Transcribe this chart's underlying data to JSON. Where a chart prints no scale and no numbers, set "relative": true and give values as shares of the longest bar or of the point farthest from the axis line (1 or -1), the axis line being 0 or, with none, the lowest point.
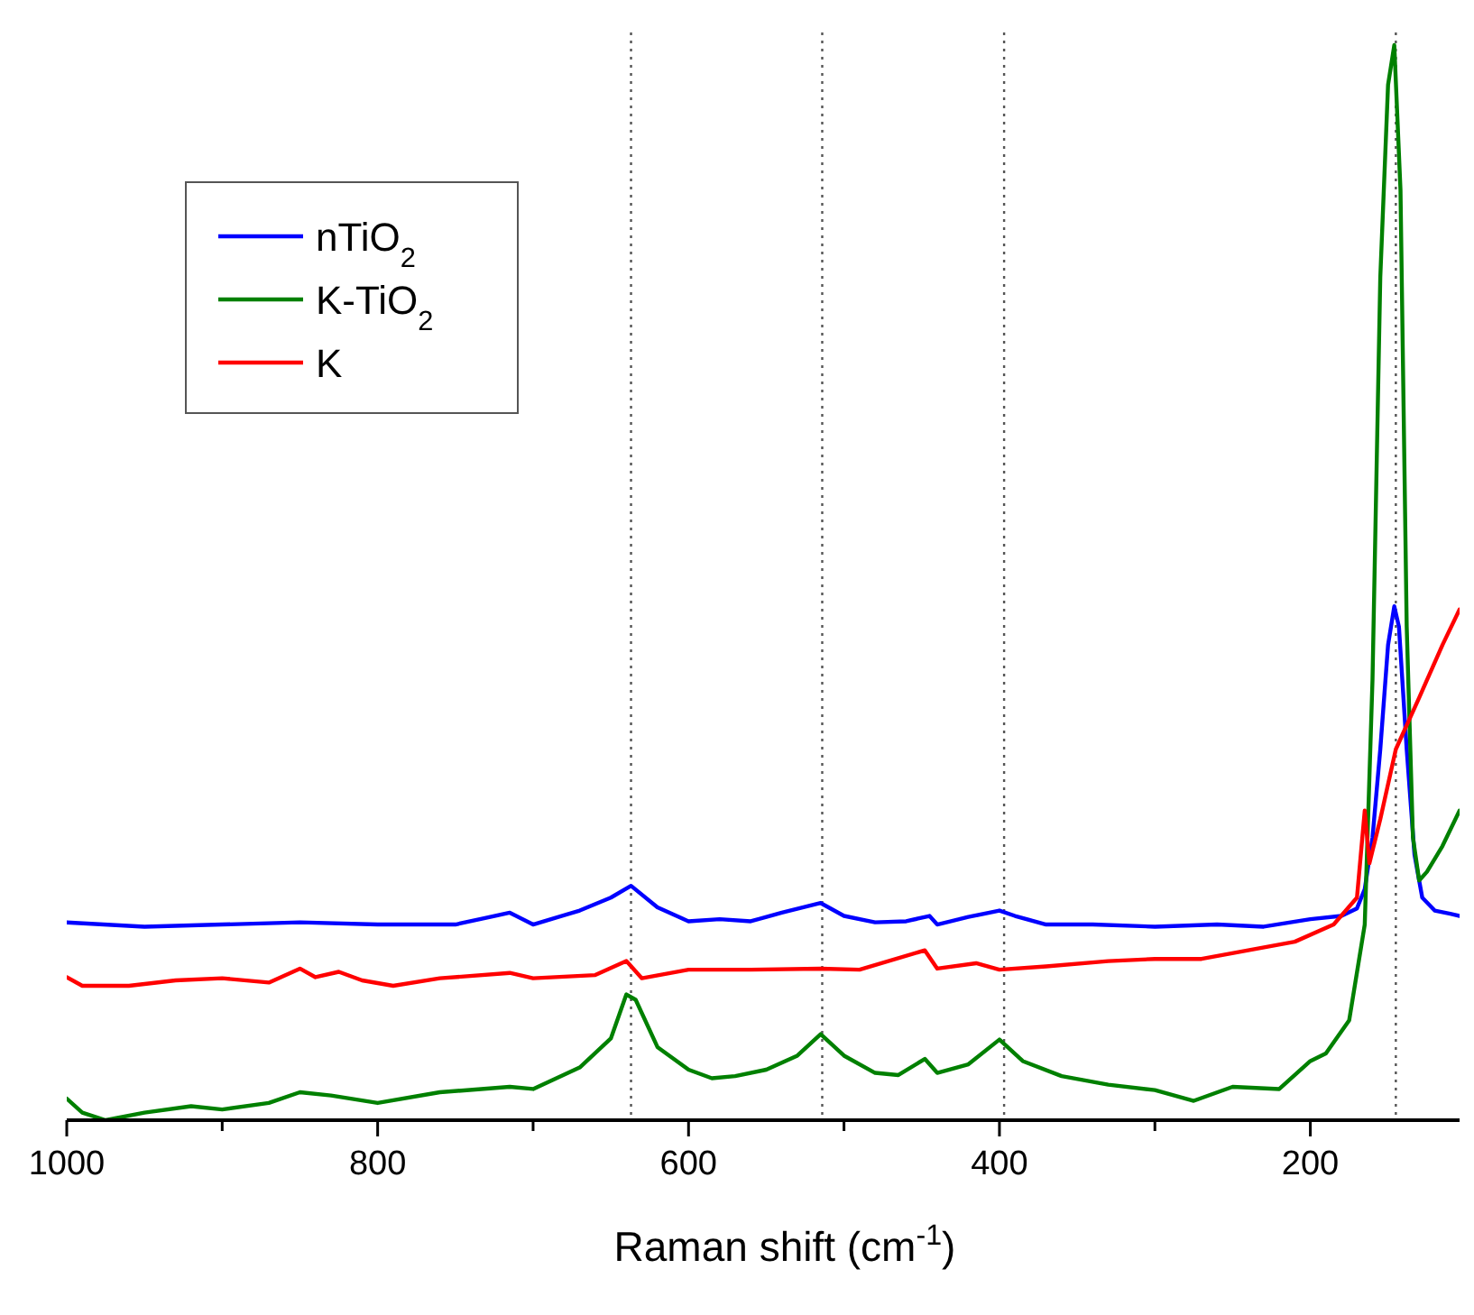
{
  "chart_data": {
    "type": "line",
    "xlabel": "Raman shift (cm$^{-1}$)",
    "relative": true,
    "legend": "top left",
    "grid": false,
    "line_style": "solid",
    "marker": "none",
    "tick_labels": "x",
    "xlim": [
      1000,
      104
    ],
    "xticks": [
      1000,
      {
        "value": 900,
        "label": null
      },
      800,
      {
        "value": 700,
        "label": null
      },
      600,
      {
        "value": 500,
        "label": null
      },
      400,
      {
        "value": 300,
        "label": null
      },
      200
    ],
    "ref_lines": [
      {
        "axis": "x",
        "value": 637,
        "color": "#555555",
        "line_style": "dotted"
      },
      {
        "axis": "x",
        "value": 514,
        "color": "#555555",
        "line_style": "dotted"
      },
      {
        "axis": "x",
        "value": 397,
        "color": "#555555",
        "line_style": "dotted"
      },
      {
        "axis": "x",
        "value": 145,
        "color": "#555555",
        "line_style": "dotted"
      }
    ],
    "series": [
      {
        "name": "nTiO$_{2}$",
        "color": "#0000ff",
        "x": [
          1000,
          950,
          900,
          850,
          800,
          750,
          715,
          700,
          670,
          650,
          637,
          620,
          600,
          580,
          560,
          540,
          515,
          500,
          480,
          460,
          445,
          440,
          420,
          400,
          390,
          370,
          340,
          300,
          260,
          230,
          200,
          180,
          170,
          165,
          160,
          155,
          150,
          146,
          143,
          138,
          133,
          128,
          120,
          110,
          104
        ],
        "values": [
          0.184,
          0.18,
          0.182,
          0.184,
          0.182,
          0.182,
          0.193,
          0.182,
          0.195,
          0.207,
          0.218,
          0.198,
          0.185,
          0.187,
          0.185,
          0.193,
          0.202,
          0.19,
          0.184,
          0.185,
          0.19,
          0.182,
          0.189,
          0.195,
          0.19,
          0.182,
          0.182,
          0.18,
          0.182,
          0.18,
          0.187,
          0.19,
          0.197,
          0.215,
          0.263,
          0.345,
          0.442,
          0.478,
          0.459,
          0.345,
          0.247,
          0.207,
          0.195,
          0.192,
          0.19
        ]
      },
      {
        "name": "K-TiO$_{2}$",
        "color": "#008000",
        "x": [
          1000,
          990,
          975,
          950,
          920,
          900,
          870,
          850,
          830,
          800,
          760,
          715,
          700,
          670,
          650,
          640,
          634,
          620,
          600,
          585,
          570,
          550,
          530,
          515,
          500,
          480,
          465,
          448,
          440,
          420,
          400,
          385,
          360,
          330,
          300,
          275,
          250,
          220,
          200,
          190,
          175,
          165,
          160,
          155,
          150,
          146,
          142,
          138,
          134,
          130,
          125,
          115,
          104
        ],
        "values": [
          0.02,
          0.007,
          0.0,
          0.007,
          0.013,
          0.01,
          0.016,
          0.026,
          0.023,
          0.016,
          0.026,
          0.031,
          0.029,
          0.049,
          0.076,
          0.117,
          0.112,
          0.068,
          0.047,
          0.039,
          0.041,
          0.047,
          0.06,
          0.08,
          0.06,
          0.044,
          0.042,
          0.057,
          0.044,
          0.052,
          0.075,
          0.055,
          0.041,
          0.033,
          0.028,
          0.018,
          0.031,
          0.029,
          0.055,
          0.062,
          0.093,
          0.182,
          0.41,
          0.784,
          0.963,
          1.0,
          0.865,
          0.459,
          0.263,
          0.223,
          0.231,
          0.255,
          0.288
        ]
      },
      {
        "name": "K",
        "color": "#ff0000",
        "x": [
          1000,
          990,
          960,
          930,
          900,
          870,
          850,
          840,
          825,
          810,
          790,
          760,
          715,
          700,
          660,
          640,
          630,
          600,
          560,
          515,
          490,
          448,
          440,
          415,
          400,
          370,
          330,
          300,
          270,
          240,
          210,
          185,
          170,
          165,
          162,
          155,
          145,
          130,
          115,
          104
        ],
        "values": [
          0.133,
          0.125,
          0.125,
          0.13,
          0.132,
          0.128,
          0.141,
          0.133,
          0.138,
          0.13,
          0.125,
          0.132,
          0.137,
          0.132,
          0.135,
          0.148,
          0.132,
          0.14,
          0.14,
          0.141,
          0.14,
          0.158,
          0.141,
          0.146,
          0.14,
          0.143,
          0.148,
          0.15,
          0.15,
          0.158,
          0.166,
          0.182,
          0.207,
          0.288,
          0.239,
          0.28,
          0.345,
          0.393,
          0.442,
          0.475
        ]
      }
    ]
  }
}
